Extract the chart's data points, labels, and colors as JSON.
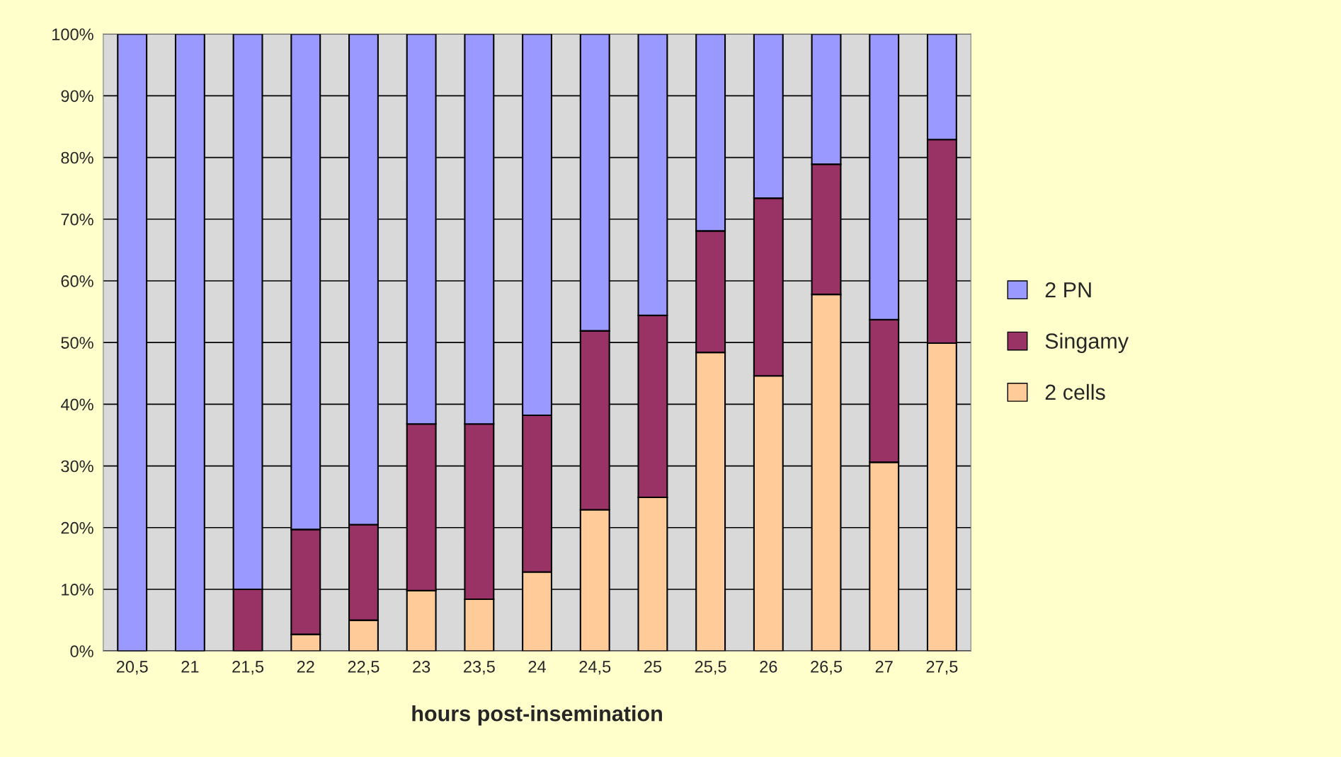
{
  "chart_data": {
    "type": "bar",
    "stacked": true,
    "xlabel": "hours post-insemination",
    "categories": [
      "20,5",
      "21",
      "21,5",
      "22",
      "22,5",
      "23",
      "23,5",
      "24",
      "24,5",
      "25",
      "25,5",
      "26",
      "26,5",
      "27",
      "27,5"
    ],
    "series": [
      {
        "name": "2 cells",
        "color": "#ffcc99",
        "values": [
          0,
          0,
          0,
          2.7,
          5.0,
          9.8,
          8.4,
          12.8,
          22.9,
          24.9,
          48.4,
          44.6,
          57.8,
          30.6,
          49.9
        ]
      },
      {
        "name": "Singamy",
        "color": "#993366",
        "values": [
          0,
          0,
          10.0,
          17.0,
          15.5,
          27.0,
          28.4,
          25.4,
          29.0,
          29.5,
          19.7,
          28.8,
          21.1,
          23.1,
          33.0
        ]
      },
      {
        "name": "2 PN",
        "color": "#9999ff",
        "values": [
          100,
          100,
          90.0,
          80.3,
          79.5,
          63.2,
          63.2,
          61.8,
          48.1,
          45.6,
          31.9,
          26.6,
          21.1,
          46.3,
          17.1
        ]
      }
    ],
    "ylim": [
      0,
      100
    ],
    "yticks": [
      {
        "value": 0,
        "label": "0%"
      },
      {
        "value": 10,
        "label": "10%"
      },
      {
        "value": 20,
        "label": "20%"
      },
      {
        "value": 30,
        "label": "30%"
      },
      {
        "value": 40,
        "label": "40%"
      },
      {
        "value": 50,
        "label": "50%"
      },
      {
        "value": 60,
        "label": "60%"
      },
      {
        "value": 70,
        "label": "70%"
      },
      {
        "value": 80,
        "label": "80%"
      },
      {
        "value": 90,
        "label": "90%"
      },
      {
        "value": 100,
        "label": "100%"
      }
    ],
    "grid": "y",
    "legend": "right"
  }
}
